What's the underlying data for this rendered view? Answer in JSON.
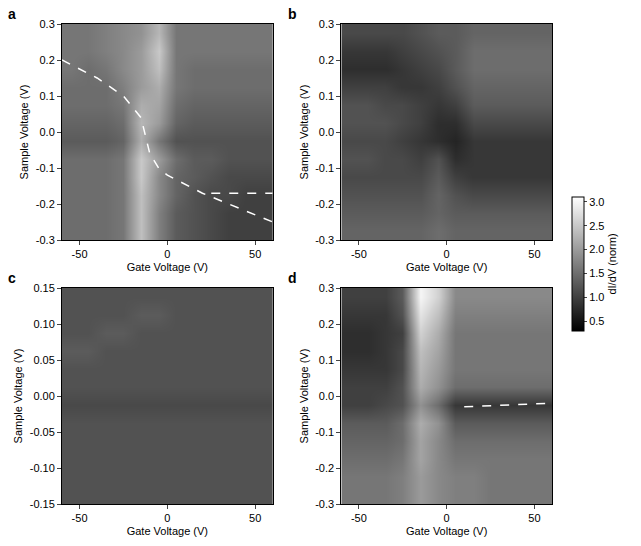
{
  "chart_data": [
    {
      "type": "heatmap",
      "panel": "a",
      "xlabel": "Gate Voltage (V)",
      "ylabel": "Sample Voltage (V)",
      "xlim": [
        -60,
        60
      ],
      "ylim": [
        -0.3,
        0.3
      ],
      "xticks": [
        -50,
        0,
        50
      ],
      "yticks": [
        -0.3,
        -0.2,
        -0.1,
        {
          "value": 0,
          "label": "0.0"
        },
        0.1,
        0.2,
        0.3
      ],
      "x": [
        -55,
        -45,
        -35,
        -25,
        -15,
        -5,
        5,
        15,
        25,
        35,
        45,
        55
      ],
      "y": [
        -0.275,
        -0.225,
        -0.175,
        -0.125,
        -0.075,
        -0.025,
        0.025,
        0.075,
        0.125,
        0.175,
        0.225,
        0.275
      ],
      "z": [
        [
          1.5,
          1.5,
          1.5,
          1.6,
          2.4,
          1.7,
          1.3,
          1.2,
          1.1,
          1.0,
          1.0,
          1.0
        ],
        [
          1.5,
          1.5,
          1.5,
          1.6,
          2.4,
          1.7,
          1.3,
          1.2,
          1.1,
          1.0,
          1.0,
          1.0
        ],
        [
          1.5,
          1.5,
          1.5,
          1.6,
          2.4,
          1.8,
          1.4,
          1.2,
          1.1,
          1.1,
          1.0,
          1.0
        ],
        [
          1.5,
          1.5,
          1.5,
          1.6,
          2.5,
          1.8,
          1.4,
          1.3,
          1.2,
          1.1,
          1.1,
          1.1
        ],
        [
          1.5,
          1.5,
          1.5,
          1.6,
          2.5,
          2.0,
          1.5,
          1.3,
          1.3,
          1.2,
          1.2,
          1.2
        ],
        [
          1.3,
          1.3,
          1.3,
          1.4,
          2.2,
          1.6,
          1.2,
          1.2,
          1.2,
          1.2,
          1.2,
          1.2
        ],
        [
          1.4,
          1.4,
          1.4,
          1.5,
          2.3,
          2.0,
          1.4,
          1.3,
          1.3,
          1.3,
          1.3,
          1.3
        ],
        [
          1.5,
          1.5,
          1.5,
          1.6,
          2.2,
          2.1,
          1.5,
          1.4,
          1.4,
          1.4,
          1.4,
          1.4
        ],
        [
          1.5,
          1.5,
          1.5,
          1.7,
          2.0,
          2.2,
          1.6,
          1.5,
          1.5,
          1.5,
          1.5,
          1.5
        ],
        [
          1.6,
          1.5,
          1.6,
          1.8,
          2.0,
          2.4,
          1.6,
          1.5,
          1.5,
          1.5,
          1.5,
          1.5
        ],
        [
          1.6,
          1.6,
          1.7,
          1.8,
          2.0,
          2.5,
          1.6,
          1.6,
          1.6,
          1.6,
          1.6,
          1.6
        ],
        [
          1.6,
          1.6,
          1.7,
          1.8,
          1.9,
          2.3,
          1.6,
          1.6,
          1.6,
          1.6,
          1.6,
          1.6
        ]
      ],
      "lines": [
        {
          "x": [
            -60,
            -40,
            -25,
            -15,
            -12,
            -10,
            -5,
            0,
            20,
            40,
            60
          ],
          "y": [
            0.2,
            0.15,
            0.1,
            0.04,
            -0.02,
            -0.06,
            -0.1,
            -0.12,
            -0.17,
            -0.21,
            -0.25
          ],
          "color": "#ffffff",
          "line_style": "dash"
        },
        {
          "x": [
            25,
            60
          ],
          "y": [
            -0.17,
            -0.17
          ],
          "color": "#ffffff",
          "line_style": "dash"
        }
      ]
    },
    {
      "type": "heatmap",
      "panel": "b",
      "xlabel": "Gate Voltage (V)",
      "ylabel": "Sample Voltage (V)",
      "xlim": [
        -60,
        60
      ],
      "ylim": [
        -0.3,
        0.3
      ],
      "xticks": [
        -50,
        0,
        50
      ],
      "yticks": [
        -0.3,
        -0.2,
        -0.1,
        {
          "value": 0,
          "label": "0.0"
        },
        0.1,
        0.2,
        0.3
      ],
      "x": [
        -55,
        -45,
        -35,
        -25,
        -15,
        -5,
        5,
        15,
        25,
        35,
        45,
        55
      ],
      "y": [
        -0.275,
        -0.225,
        -0.175,
        -0.125,
        -0.075,
        -0.025,
        0.025,
        0.075,
        0.125,
        0.175,
        0.225,
        0.275
      ],
      "z": [
        [
          1.4,
          1.4,
          1.4,
          1.4,
          1.4,
          1.5,
          1.4,
          1.4,
          1.4,
          1.4,
          1.4,
          1.4
        ],
        [
          1.3,
          1.3,
          1.3,
          1.3,
          1.3,
          1.4,
          1.3,
          1.3,
          1.3,
          1.3,
          1.3,
          1.3
        ],
        [
          1.2,
          1.2,
          1.2,
          1.2,
          1.2,
          1.4,
          1.2,
          1.1,
          1.1,
          1.1,
          1.1,
          1.1
        ],
        [
          1.1,
          1.1,
          1.1,
          1.1,
          1.1,
          1.3,
          1.0,
          0.9,
          0.9,
          0.9,
          0.9,
          0.9
        ],
        [
          1.2,
          1.2,
          1.1,
          1.1,
          1.0,
          1.2,
          0.8,
          0.9,
          0.9,
          0.9,
          0.9,
          0.9
        ],
        [
          1.1,
          1.1,
          1.1,
          1.0,
          0.9,
          0.8,
          0.7,
          0.9,
          0.9,
          0.9,
          0.9,
          0.9
        ],
        [
          1.2,
          1.2,
          1.2,
          1.1,
          1.0,
          0.8,
          0.8,
          1.1,
          1.1,
          1.1,
          1.1,
          1.1
        ],
        [
          1.2,
          1.2,
          1.1,
          1.1,
          1.0,
          0.9,
          1.0,
          1.3,
          1.3,
          1.3,
          1.3,
          1.3
        ],
        [
          1.0,
          1.0,
          1.0,
          0.9,
          0.9,
          1.0,
          1.2,
          1.4,
          1.4,
          1.4,
          1.4,
          1.4
        ],
        [
          0.8,
          0.8,
          0.8,
          0.9,
          1.0,
          1.1,
          1.3,
          1.5,
          1.5,
          1.5,
          1.5,
          1.5
        ],
        [
          0.9,
          0.9,
          0.9,
          1.0,
          1.1,
          1.2,
          1.3,
          1.5,
          1.5,
          1.5,
          1.5,
          1.5
        ],
        [
          1.1,
          1.1,
          1.1,
          1.1,
          1.2,
          1.3,
          1.3,
          1.4,
          1.4,
          1.4,
          1.4,
          1.4
        ]
      ],
      "lines": []
    },
    {
      "type": "heatmap",
      "panel": "c",
      "xlabel": "Gate Voltage (V)",
      "ylabel": "Sample Voltage (V)",
      "xlim": [
        -60,
        60
      ],
      "ylim": [
        -0.15,
        0.15
      ],
      "xticks": [
        -50,
        0,
        50
      ],
      "yticks": [
        -0.15,
        {
          "value": -0.1,
          "label": "-0.10"
        },
        -0.05,
        {
          "value": 0,
          "label": "0.00"
        },
        0.05,
        {
          "value": 0.1,
          "label": "0.10"
        },
        0.15
      ],
      "x": [
        -55,
        -45,
        -35,
        -25,
        -15,
        -5,
        5,
        15,
        25,
        35,
        45,
        55
      ],
      "y": [
        -0.1375,
        -0.1125,
        -0.0875,
        -0.0625,
        -0.0375,
        -0.0125,
        0.0125,
        0.0375,
        0.0625,
        0.0875,
        0.1125,
        0.1375
      ],
      "z": [
        [
          1.2,
          1.2,
          1.2,
          1.2,
          1.2,
          1.2,
          1.2,
          1.2,
          1.2,
          1.2,
          1.2,
          1.2
        ],
        [
          1.2,
          1.2,
          1.2,
          1.2,
          1.2,
          1.2,
          1.2,
          1.2,
          1.2,
          1.2,
          1.2,
          1.2
        ],
        [
          1.2,
          1.2,
          1.2,
          1.2,
          1.2,
          1.2,
          1.2,
          1.2,
          1.2,
          1.2,
          1.2,
          1.2
        ],
        [
          1.2,
          1.2,
          1.2,
          1.2,
          1.2,
          1.2,
          1.2,
          1.2,
          1.2,
          1.2,
          1.2,
          1.2
        ],
        [
          1.2,
          1.2,
          1.2,
          1.2,
          1.2,
          1.2,
          1.2,
          1.2,
          1.2,
          1.2,
          1.2,
          1.2
        ],
        [
          1.1,
          1.1,
          1.1,
          1.1,
          1.1,
          1.1,
          1.1,
          1.1,
          1.1,
          1.1,
          1.1,
          1.1
        ],
        [
          1.2,
          1.2,
          1.2,
          1.2,
          1.2,
          1.2,
          1.2,
          1.2,
          1.2,
          1.2,
          1.2,
          1.2
        ],
        [
          1.2,
          1.2,
          1.2,
          1.2,
          1.2,
          1.2,
          1.2,
          1.2,
          1.2,
          1.2,
          1.2,
          1.2
        ],
        [
          1.3,
          1.3,
          1.2,
          1.2,
          1.2,
          1.2,
          1.2,
          1.2,
          1.2,
          1.2,
          1.2,
          1.2
        ],
        [
          1.2,
          1.2,
          1.3,
          1.3,
          1.2,
          1.2,
          1.2,
          1.2,
          1.2,
          1.2,
          1.2,
          1.2
        ],
        [
          1.2,
          1.2,
          1.2,
          1.2,
          1.3,
          1.3,
          1.2,
          1.2,
          1.2,
          1.2,
          1.2,
          1.2
        ],
        [
          1.2,
          1.2,
          1.2,
          1.2,
          1.2,
          1.2,
          1.2,
          1.2,
          1.2,
          1.2,
          1.2,
          1.2
        ]
      ],
      "lines": []
    },
    {
      "type": "heatmap",
      "panel": "d",
      "xlabel": "Gate Voltage (V)",
      "ylabel": "Sample Voltage (V)",
      "xlim": [
        -60,
        60
      ],
      "ylim": [
        -0.3,
        0.3
      ],
      "xticks": [
        -50,
        0,
        50
      ],
      "yticks": [
        -0.3,
        -0.2,
        -0.1,
        {
          "value": 0,
          "label": "0.0"
        },
        0.1,
        0.2,
        0.3
      ],
      "x": [
        -55,
        -45,
        -35,
        -25,
        -15,
        -5,
        5,
        15,
        25,
        35,
        45,
        55
      ],
      "y": [
        -0.275,
        -0.225,
        -0.175,
        -0.125,
        -0.075,
        -0.025,
        0.025,
        0.075,
        0.125,
        0.175,
        0.225,
        0.275
      ],
      "z": [
        [
          1.6,
          1.6,
          1.6,
          1.7,
          2.0,
          1.8,
          1.7,
          1.7,
          1.6,
          1.6,
          1.6,
          1.6
        ],
        [
          1.6,
          1.6,
          1.6,
          1.7,
          2.0,
          1.8,
          1.7,
          1.7,
          1.6,
          1.6,
          1.6,
          1.6
        ],
        [
          1.5,
          1.5,
          1.5,
          1.6,
          2.1,
          1.8,
          1.6,
          1.6,
          1.6,
          1.6,
          1.6,
          1.6
        ],
        [
          1.4,
          1.4,
          1.4,
          1.5,
          2.1,
          1.8,
          1.5,
          1.5,
          1.5,
          1.5,
          1.5,
          1.5
        ],
        [
          1.3,
          1.3,
          1.3,
          1.5,
          2.2,
          1.9,
          1.3,
          1.3,
          1.3,
          1.3,
          1.3,
          1.3
        ],
        [
          1.0,
          1.0,
          1.1,
          1.2,
          1.9,
          1.5,
          0.9,
          0.9,
          0.9,
          0.9,
          0.9,
          0.9
        ],
        [
          1.0,
          1.0,
          1.0,
          1.2,
          2.2,
          1.9,
          1.5,
          1.5,
          1.5,
          1.5,
          1.5,
          1.5
        ],
        [
          0.9,
          0.9,
          0.9,
          1.1,
          2.3,
          2.0,
          1.6,
          1.6,
          1.6,
          1.6,
          1.6,
          1.6
        ],
        [
          0.8,
          0.8,
          0.9,
          1.1,
          2.4,
          2.1,
          1.6,
          1.6,
          1.6,
          1.6,
          1.6,
          1.6
        ],
        [
          0.8,
          0.8,
          0.9,
          1.0,
          2.6,
          2.2,
          1.6,
          1.6,
          1.6,
          1.6,
          1.6,
          1.6
        ],
        [
          0.9,
          0.9,
          0.9,
          1.2,
          2.8,
          2.4,
          1.7,
          1.7,
          1.7,
          1.7,
          1.7,
          1.7
        ],
        [
          1.0,
          1.0,
          1.0,
          1.3,
          3.0,
          2.6,
          1.8,
          1.8,
          1.8,
          1.8,
          1.8,
          1.8
        ]
      ],
      "lines": [
        {
          "x": [
            10,
            60
          ],
          "y": [
            -0.03,
            -0.02
          ],
          "color": "#ffffff",
          "line_style": "dash"
        }
      ]
    }
  ],
  "colorbar": {
    "title": "dI/dV (norm)",
    "range": [
      0.3,
      3.1
    ],
    "ticks": [
      0.5,
      {
        "value": 1,
        "label": "1.0"
      },
      1.5,
      {
        "value": 2,
        "label": "2.0"
      },
      2.5,
      {
        "value": 3,
        "label": "3.0"
      }
    ],
    "colors": [
      "#000000",
      "#ffffff"
    ]
  }
}
